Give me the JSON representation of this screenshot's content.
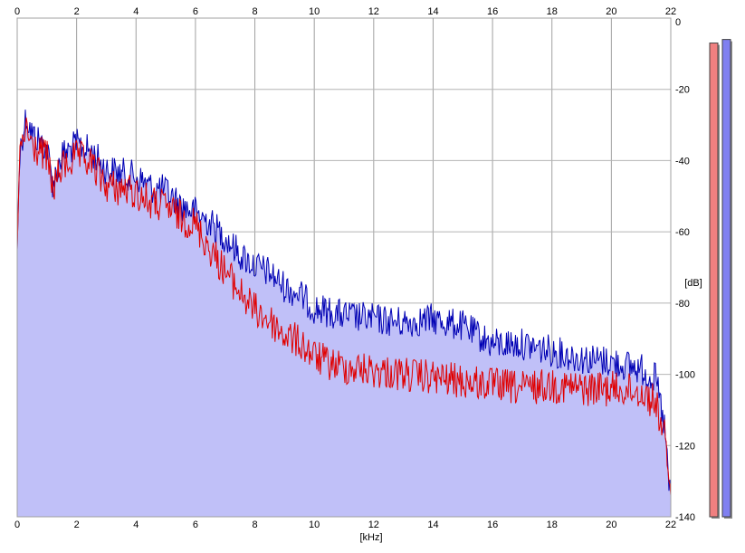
{
  "chart_data": {
    "type": "area",
    "xlabel": "[kHz]",
    "ylabel": "[dB]",
    "xlim": [
      0,
      22
    ],
    "ylim": [
      -140,
      0
    ],
    "x_ticks": [
      0,
      2,
      4,
      6,
      8,
      10,
      12,
      14,
      16,
      18,
      20,
      22
    ],
    "y_ticks": [
      0,
      -20,
      -40,
      -60,
      -80,
      -100,
      -120,
      -140
    ],
    "x_tick_labels": [
      "0",
      "2",
      "4",
      "6",
      "8",
      "10",
      "12",
      "14",
      "16",
      "18",
      "20",
      "22"
    ],
    "y_tick_labels": [
      "0",
      "-20",
      "-40",
      "-60",
      "-80",
      "-100",
      "-120",
      "-140"
    ],
    "grid": true,
    "series": [
      {
        "color": "#0000b4",
        "fill": "#c0c0f8",
        "envelope_x": [
          0,
          0.1,
          0.3,
          0.5,
          1.0,
          1.2,
          1.5,
          2.0,
          2.5,
          3.0,
          3.5,
          4.0,
          4.5,
          5.0,
          5.5,
          6.0,
          6.5,
          7.0,
          7.5,
          8.0,
          8.5,
          9.0,
          9.5,
          10.0,
          10.5,
          11.0,
          12.0,
          13.0,
          14.0,
          15.0,
          16.0,
          17.0,
          18.0,
          19.0,
          20.0,
          21.0,
          21.5,
          21.8,
          22.0
        ],
        "envelope_y": [
          -65,
          -32,
          -23,
          -28,
          -32,
          -42,
          -34,
          -31,
          -33,
          -38,
          -39,
          -40,
          -43,
          -44,
          -48,
          -50,
          -53,
          -57,
          -62,
          -65,
          -67,
          -71,
          -73,
          -77,
          -78,
          -79,
          -80,
          -81,
          -80,
          -82,
          -87,
          -87,
          -89,
          -91,
          -92,
          -94,
          -97,
          -111,
          -133
        ]
      },
      {
        "color": "#e00000",
        "envelope_x": [
          0,
          0.1,
          0.3,
          0.5,
          1.0,
          1.2,
          1.5,
          2.0,
          2.5,
          3.0,
          3.5,
          4.0,
          4.5,
          5.0,
          5.5,
          6.0,
          6.5,
          7.0,
          7.5,
          8.0,
          8.5,
          9.0,
          9.5,
          10.0,
          10.5,
          11.0,
          12.0,
          13.0,
          14.0,
          15.0,
          16.0,
          17.0,
          18.0,
          19.0,
          20.0,
          21.0,
          21.5,
          21.8,
          22.0
        ],
        "envelope_y": [
          -65,
          -33,
          -26,
          -31,
          -34,
          -43,
          -37,
          -34,
          -36,
          -42,
          -43,
          -44,
          -47,
          -48,
          -51,
          -53,
          -60,
          -66,
          -72,
          -77,
          -80,
          -84,
          -86,
          -90,
          -92,
          -93,
          -94,
          -95,
          -96,
          -97,
          -98,
          -99,
          -98,
          -99,
          -99,
          -100,
          -103,
          -113,
          -134
        ]
      }
    ],
    "level_meters": [
      {
        "color": "#f08080",
        "level_db": -7
      },
      {
        "color": "#8080f0",
        "level_db": -6
      }
    ]
  }
}
